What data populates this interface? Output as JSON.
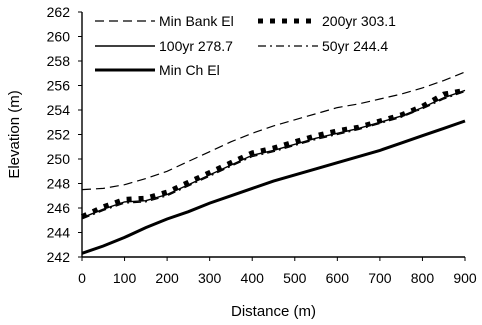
{
  "chart_data": {
    "type": "line",
    "xlabel": "Distance (m)",
    "ylabel": "Elevation (m)",
    "xlim": [
      0,
      900
    ],
    "ylim": [
      242,
      262
    ],
    "xticks": [
      0,
      100,
      200,
      300,
      400,
      500,
      600,
      700,
      800,
      900
    ],
    "yticks": [
      242,
      244,
      246,
      248,
      250,
      252,
      254,
      256,
      258,
      260,
      262
    ],
    "grid": false,
    "legend_position": "top-left",
    "series": [
      {
        "name": "Min Bank El",
        "style": "dashed",
        "x": [
          0,
          50,
          100,
          150,
          200,
          250,
          300,
          350,
          400,
          450,
          500,
          550,
          600,
          650,
          700,
          750,
          800,
          850,
          900
        ],
        "y": [
          247.5,
          247.6,
          247.9,
          248.4,
          249.0,
          249.8,
          250.6,
          251.4,
          252.1,
          252.7,
          253.2,
          253.7,
          254.2,
          254.5,
          254.9,
          255.3,
          255.8,
          256.4,
          257.1
        ]
      },
      {
        "name": "200yr 303.1",
        "style": "dotted-thick",
        "x": [
          0,
          50,
          100,
          150,
          200,
          250,
          300,
          350,
          400,
          450,
          500,
          550,
          600,
          650,
          700,
          750,
          800,
          850,
          900
        ],
        "y": [
          245.3,
          246.1,
          246.7,
          246.8,
          247.3,
          248.1,
          248.9,
          249.7,
          250.5,
          250.9,
          251.4,
          251.9,
          252.3,
          252.6,
          253.1,
          253.6,
          254.3,
          255.3,
          255.6
        ]
      },
      {
        "name": "100yr 278.7",
        "style": "solid",
        "x": [
          0,
          50,
          100,
          150,
          200,
          250,
          300,
          350,
          400,
          450,
          500,
          550,
          600,
          650,
          700,
          750,
          800,
          850,
          900
        ],
        "y": [
          245.2,
          245.9,
          246.5,
          246.6,
          247.1,
          247.9,
          248.7,
          249.5,
          250.3,
          250.7,
          251.2,
          251.7,
          252.1,
          252.5,
          253.0,
          253.5,
          254.2,
          255.0,
          255.6
        ]
      },
      {
        "name": "50yr 244.4",
        "style": "dashdot",
        "x": [
          0,
          50,
          100,
          150,
          200,
          250,
          300,
          350,
          400,
          450,
          500,
          550,
          600,
          650,
          700,
          750,
          800,
          850,
          900
        ],
        "y": [
          245.1,
          245.8,
          246.4,
          246.5,
          247.0,
          247.8,
          248.6,
          249.4,
          250.2,
          250.6,
          251.1,
          251.6,
          252.0,
          252.4,
          252.9,
          253.4,
          254.1,
          254.9,
          255.5
        ]
      },
      {
        "name": "Min Ch El",
        "style": "solid-thick",
        "x": [
          0,
          50,
          100,
          150,
          200,
          250,
          300,
          350,
          400,
          450,
          500,
          550,
          600,
          650,
          700,
          750,
          800,
          850,
          900
        ],
        "y": [
          242.3,
          242.9,
          243.6,
          244.4,
          245.1,
          245.7,
          246.4,
          247.0,
          247.6,
          248.2,
          248.7,
          249.2,
          249.7,
          250.2,
          250.7,
          251.3,
          251.9,
          252.5,
          253.1
        ]
      }
    ]
  }
}
